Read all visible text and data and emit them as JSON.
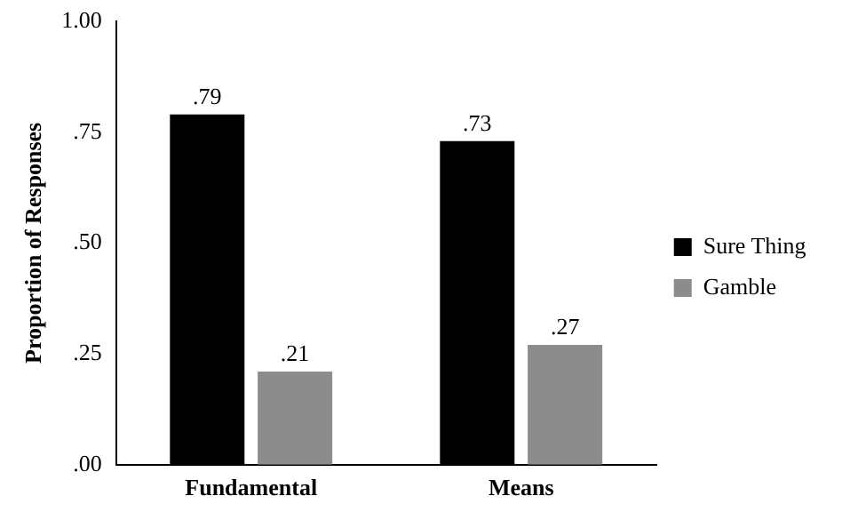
{
  "chart_data": {
    "type": "bar",
    "ylabel": "Proportion of Responses",
    "categories": [
      "Fundamental",
      "Means"
    ],
    "series": [
      {
        "name": "Sure Thing",
        "color": "#000000",
        "values": [
          0.79,
          0.73
        ],
        "value_labels": [
          ".79",
          ".73"
        ]
      },
      {
        "name": "Gamble",
        "color": "#8c8c8c",
        "values": [
          0.21,
          0.27
        ],
        "value_labels": [
          ".21",
          ".27"
        ]
      }
    ],
    "ylim": [
      0,
      1
    ],
    "yticks": [
      {
        "value": 0,
        "label": ".00"
      },
      {
        "value": 0.25,
        "label": ".25"
      },
      {
        "value": 0.5,
        "label": ".50"
      },
      {
        "value": 0.75,
        "label": ".75"
      },
      {
        "value": 1,
        "label": "1.00"
      }
    ],
    "grid": false,
    "legend": "right"
  }
}
